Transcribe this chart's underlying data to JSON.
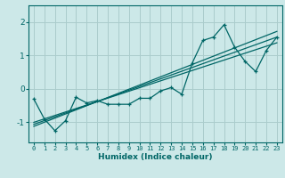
{
  "xlabel": "Humidex (Indice chaleur)",
  "bg_color": "#cce8e8",
  "grid_color": "#aacccc",
  "line_color": "#006666",
  "xlim": [
    -0.5,
    23.5
  ],
  "ylim": [
    -1.6,
    2.5
  ],
  "xticks": [
    0,
    1,
    2,
    3,
    4,
    5,
    6,
    7,
    8,
    9,
    10,
    11,
    12,
    13,
    14,
    15,
    16,
    17,
    18,
    19,
    20,
    21,
    22,
    23
  ],
  "yticks": [
    -1,
    0,
    1,
    2
  ],
  "main_data_x": [
    0,
    1,
    2,
    3,
    4,
    5,
    6,
    7,
    8,
    9,
    10,
    11,
    12,
    13,
    14,
    15,
    16,
    17,
    18,
    19,
    20,
    21,
    22,
    23
  ],
  "main_data_y": [
    -0.3,
    -0.9,
    -1.25,
    -0.95,
    -0.25,
    -0.42,
    -0.35,
    -0.46,
    -0.46,
    -0.46,
    -0.28,
    -0.28,
    -0.06,
    0.04,
    -0.16,
    0.78,
    1.45,
    1.55,
    1.92,
    1.25,
    0.82,
    0.52,
    1.15,
    1.55
  ],
  "line1_x": [
    0,
    23
  ],
  "line1_y": [
    -1.0,
    1.38
  ],
  "line2_x": [
    0,
    23
  ],
  "line2_y": [
    -1.12,
    1.72
  ],
  "line3_x": [
    0,
    23
  ],
  "line3_y": [
    -1.06,
    1.55
  ]
}
